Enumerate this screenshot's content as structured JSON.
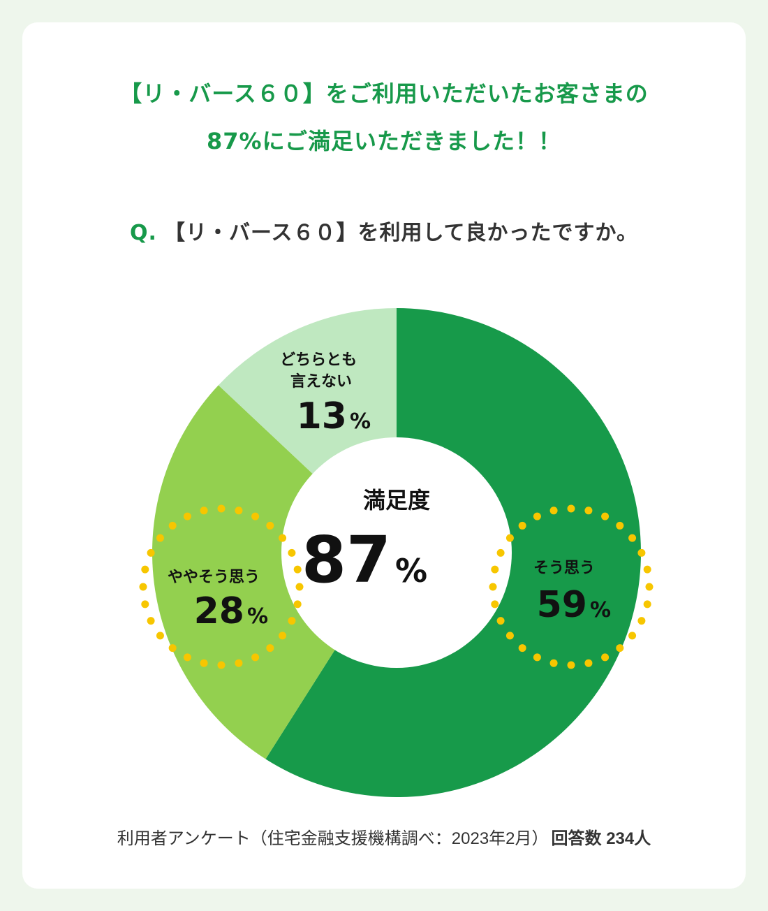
{
  "headline": {
    "line1": "【リ・バース６０】をご利用いただいたお客さまの",
    "line2": "87%にご満足いただきました！！"
  },
  "question": {
    "prefix": "Q.",
    "text": "【リ・バース６０】を利用して良かったですか。"
  },
  "center": {
    "label": "満足度",
    "value": "87",
    "unit": "%"
  },
  "chart_data": {
    "type": "pie",
    "title": "",
    "categories": [
      "そう思う",
      "ややそう思う",
      "どちらとも言えない"
    ],
    "values": [
      59,
      28,
      13
    ],
    "unit": "%",
    "colors": [
      "#179a4a",
      "#93d04f",
      "#bfe8c0"
    ],
    "highlight_color": "#f7c600"
  },
  "footer": {
    "source": "利用者アンケート（住宅金融支援機構調べ：2023年2月）",
    "count": "回答数 234人"
  }
}
